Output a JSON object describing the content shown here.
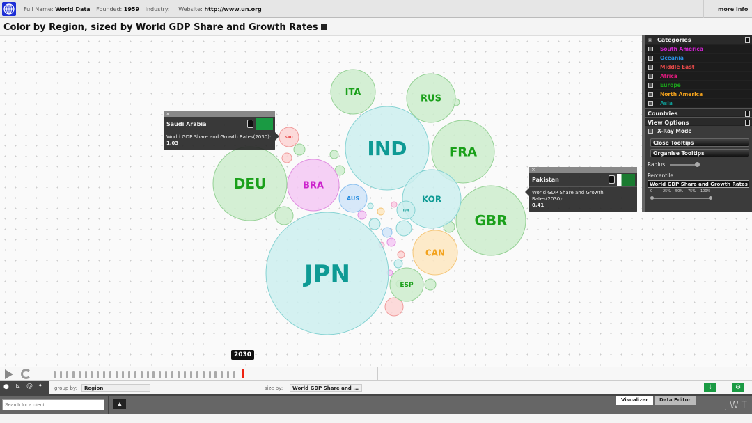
{
  "header": {
    "full_name_label": "Full Name:",
    "full_name": "World Data",
    "founded_label": "Founded:",
    "founded": "1959",
    "industry_label": "Industry:",
    "website_label": "Website:",
    "website": "http://www.un.org",
    "more_info": "more info"
  },
  "title": "Color by Region, sized by World GDP Share and Growth Rates",
  "regions": {
    "South America": {
      "text": "#cc22cc",
      "fill": "#f3c8f3",
      "stroke": "#e08ee0"
    },
    "Oceania": {
      "text": "#2a8ee0",
      "fill": "#d0e4f8",
      "stroke": "#8cc0ee"
    },
    "Middle East": {
      "text": "#e84a4a",
      "fill": "#fbd3d3",
      "stroke": "#f09a9a"
    },
    "Africa": {
      "text": "#e0197d",
      "fill": "#f9cde3",
      "stroke": "#eea0c8"
    },
    "Europe": {
      "text": "#1aa01a",
      "fill": "#cdeccd",
      "stroke": "#95d195"
    },
    "North America": {
      "text": "#f3a21c",
      "fill": "#fde6c0",
      "stroke": "#f5c77a"
    },
    "Asia": {
      "text": "#0e9a94",
      "fill": "#cdeeee",
      "stroke": "#85d2d2"
    }
  },
  "bubbles": [
    {
      "label": "JPN",
      "region": "Asia"
    },
    {
      "label": "IND",
      "region": "Asia"
    },
    {
      "label": "DEU",
      "region": "Europe"
    },
    {
      "label": "GBR",
      "region": "Europe"
    },
    {
      "label": "FRA",
      "region": "Europe"
    },
    {
      "label": "KOR",
      "region": "Asia"
    },
    {
      "label": "BRA",
      "region": "South America"
    },
    {
      "label": "RUS",
      "region": "Europe"
    },
    {
      "label": "ITA",
      "region": "Europe"
    },
    {
      "label": "CAN",
      "region": "North America"
    },
    {
      "label": "ESP",
      "region": "Europe"
    },
    {
      "label": "AUS",
      "region": "Oceania"
    },
    {
      "label": "SAU",
      "region": "Middle East"
    },
    {
      "label": "IDN",
      "region": "Asia"
    }
  ],
  "tooltips": [
    {
      "country": "Saudi Arabia",
      "metric": "World GDP Share and Growth Rates(2030):",
      "value": "1.03"
    },
    {
      "country": "Pakistan",
      "metric": "World GDP Share and Growth Rates(2030):",
      "value": "0.41"
    }
  ],
  "panel": {
    "categories_title": "Categories",
    "categories": [
      {
        "label": "South America",
        "color": "#cc22cc",
        "checked": true
      },
      {
        "label": "Oceania",
        "color": "#2a8ee0",
        "checked": true
      },
      {
        "label": "Middle East",
        "color": "#e84a4a",
        "checked": true
      },
      {
        "label": "Africa",
        "color": "#e0197d",
        "checked": true
      },
      {
        "label": "Europe",
        "color": "#1aa01a",
        "checked": true
      },
      {
        "label": "North America",
        "color": "#f3a21c",
        "checked": true
      },
      {
        "label": "Asia",
        "color": "#0e9a94",
        "checked": true
      }
    ],
    "countries_title": "Countries",
    "view_options_title": "View Options",
    "xray_label": "X-Ray Mode",
    "xray_checked": true,
    "close_tooltips": "Close Tooltips",
    "organise_tooltips": "Organise Tooltips",
    "radius_label": "Radius",
    "percentile_label": "Percentile",
    "percentile_select": "World GDP Share and Growth Rates",
    "percentile_ticks": [
      "0",
      "25%",
      "50%",
      "75%",
      "100%"
    ],
    "percentile_range": [
      0,
      100
    ]
  },
  "timeline": {
    "current_year": "2030"
  },
  "controls": {
    "group_by_label": "group by:",
    "group_by": "Region",
    "size_by_label": "size by:",
    "size_by": "World GDP Share and ..."
  },
  "footer": {
    "search_placeholder": "Search for a client...",
    "tab_visualizer": "Visualizer",
    "tab_data_editor": "Data Editor",
    "brand": "JWT"
  }
}
